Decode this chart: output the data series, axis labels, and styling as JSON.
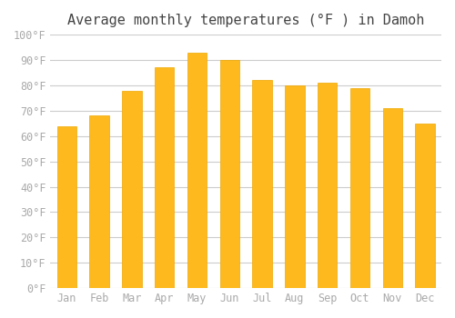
{
  "title": "Average monthly temperatures (°F ) in Damoh",
  "months": [
    "Jan",
    "Feb",
    "Mar",
    "Apr",
    "May",
    "Jun",
    "Jul",
    "Aug",
    "Sep",
    "Oct",
    "Nov",
    "Dec"
  ],
  "values": [
    64,
    68,
    78,
    87,
    93,
    90,
    82,
    80,
    81,
    79,
    71,
    65
  ],
  "bar_color": "#FDB91E",
  "bar_edge_color": "#F0A800",
  "background_color": "#FFFFFF",
  "grid_color": "#CCCCCC",
  "tick_label_color": "#AAAAAA",
  "title_color": "#444444",
  "ylim": [
    0,
    100
  ],
  "ytick_step": 10,
  "title_fontsize": 11,
  "tick_fontsize": 8.5
}
